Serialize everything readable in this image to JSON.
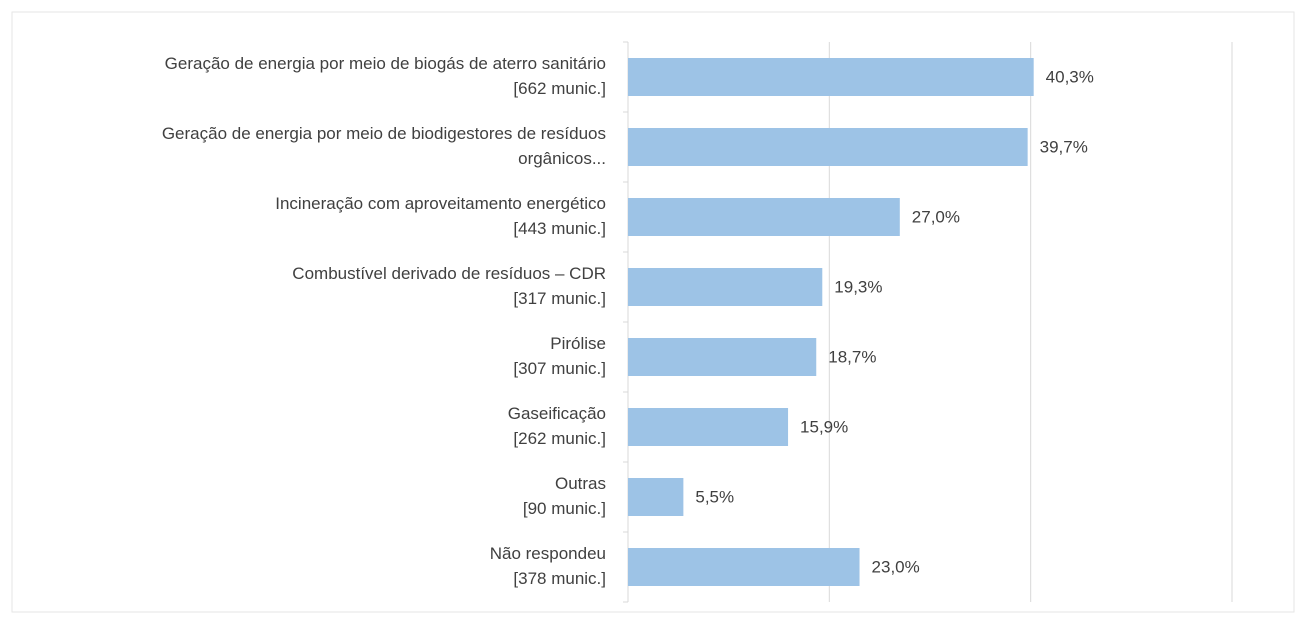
{
  "chart_data": {
    "type": "bar",
    "orientation": "horizontal",
    "categories": [
      [
        "Geração de energia por meio de biogás de aterro sanitário",
        "[662 munic.]"
      ],
      [
        "Geração de energia por meio de biodigestores de resíduos",
        "orgânicos..."
      ],
      [
        "Incineração com aproveitamento energético",
        "[443 munic.]"
      ],
      [
        "Combustível derivado de resíduos – CDR",
        "[317 munic.]"
      ],
      [
        "Pirólise",
        "[307 munic.]"
      ],
      [
        "Gaseificação",
        "[262 munic.]"
      ],
      [
        "Outras",
        "[90 munic.]"
      ],
      [
        "Não respondeu",
        "[378 munic.]"
      ]
    ],
    "values": [
      40.3,
      39.7,
      27.0,
      19.3,
      18.7,
      15.9,
      5.5,
      23.0
    ],
    "value_labels": [
      "40,3%",
      "39,7%",
      "27,0%",
      "19,3%",
      "18,7%",
      "15,9%",
      "5,5%",
      "23,0%"
    ],
    "color": "#9dc3e6",
    "xlim": [
      0,
      60
    ],
    "xticks": [
      0,
      20,
      40,
      60
    ],
    "grid": true
  }
}
